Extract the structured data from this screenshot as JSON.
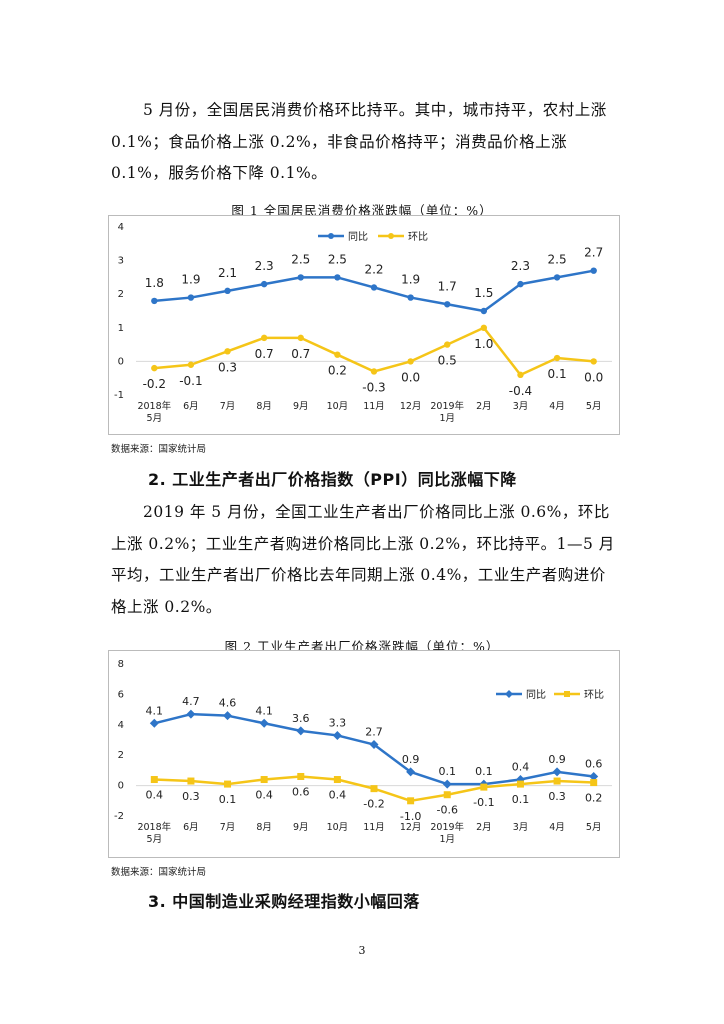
{
  "para1": "5 月份，全国居民消费价格环比持平。其中，城市持平，农村上涨 0.1%；食品价格上涨 0.2%，非食品价格持平；消费品价格上涨 0.1%，服务价格下降 0.1%。",
  "fig1_title": "图 1   全国居民消费价格涨跌幅（单位：%）",
  "fig2_title": "图 2   工业生产者出厂价格涨跌幅（单位：%）",
  "source1": "数据来源：国家统计局",
  "source2": "数据来源：国家统计局",
  "heading2": "2.  工业生产者出厂价格指数（PPI）同比涨幅下降",
  "para2": "2019 年 5 月份，全国工业生产者出厂价格同比上涨 0.6%，环比上涨 0.2%；工业生产者购进价格同比上涨 0.2%，环比持平。1—5 月平均，工业生产者出厂价格比去年同期上涨 0.4%，工业生产者购进价格上涨 0.2%。",
  "heading3": "3.  中国制造业采购经理指数小幅回落",
  "page_number": "3",
  "colors": {
    "yoy": "#2e75c8",
    "mom": "#f5c518"
  },
  "chart_data": [
    {
      "type": "line",
      "title": "全国居民消费价格涨跌幅（单位：%）",
      "categories": [
        "2018年\n5月",
        "6月",
        "7月",
        "8月",
        "9月",
        "10月",
        "11月",
        "12月",
        "2019年\n1月",
        "2月",
        "3月",
        "4月",
        "5月"
      ],
      "series": [
        {
          "name": "同比",
          "values": [
            1.8,
            1.9,
            2.1,
            2.3,
            2.5,
            2.5,
            2.2,
            1.9,
            1.7,
            1.5,
            2.3,
            2.5,
            2.7
          ]
        },
        {
          "name": "环比",
          "values": [
            -0.2,
            -0.1,
            0.3,
            0.7,
            0.7,
            0.2,
            -0.3,
            0.0,
            0.5,
            1.0,
            -0.4,
            0.1,
            0.0
          ]
        }
      ],
      "ylim": [
        -1,
        4
      ],
      "yticks": [
        -1,
        0,
        1,
        2,
        3,
        4
      ],
      "legend": "top-center",
      "marker": "circle"
    },
    {
      "type": "line",
      "title": "工业生产者出厂价格涨跌幅（单位：%）",
      "categories": [
        "2018年\n5月",
        "6月",
        "7月",
        "8月",
        "9月",
        "10月",
        "11月",
        "12月",
        "2019年\n1月",
        "2月",
        "3月",
        "4月",
        "5月"
      ],
      "series": [
        {
          "name": "同比",
          "values": [
            4.1,
            4.7,
            4.6,
            4.1,
            3.6,
            3.3,
            2.7,
            0.9,
            0.1,
            0.1,
            0.4,
            0.9,
            0.6
          ]
        },
        {
          "name": "环比",
          "values": [
            0.4,
            0.3,
            0.1,
            0.4,
            0.6,
            0.4,
            -0.2,
            -1.0,
            -0.6,
            -0.1,
            0.1,
            0.3,
            0.2
          ]
        }
      ],
      "ylim": [
        -2,
        8
      ],
      "yticks": [
        -2,
        0,
        2,
        4,
        6,
        8
      ],
      "legend": "top-right",
      "marker": "diamond-square"
    }
  ]
}
